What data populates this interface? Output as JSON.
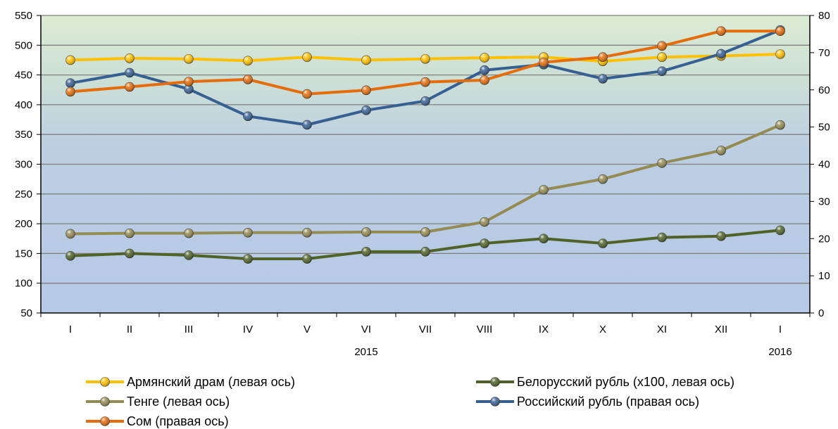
{
  "chart_data": {
    "type": "line",
    "categories": [
      "I",
      "II",
      "III",
      "IV",
      "V",
      "VI",
      "VII",
      "VIII",
      "IX",
      "X",
      "XI",
      "XII",
      "I"
    ],
    "year_labels": [
      {
        "category_index": 5,
        "label": "2015"
      },
      {
        "category_index": 12,
        "label": "2016"
      }
    ],
    "left_axis": {
      "ylim": [
        50,
        550
      ],
      "ticks": [
        "50",
        "100",
        "150",
        "200",
        "250",
        "300",
        "350",
        "400",
        "450",
        "500",
        "550"
      ]
    },
    "right_axis": {
      "ylim": [
        0,
        80
      ],
      "ticks": [
        "0",
        "10",
        "20",
        "30",
        "40",
        "50",
        "60",
        "70",
        "80"
      ]
    },
    "grid": true,
    "legend_position": "bottom",
    "series": [
      {
        "name": "Армянский драм (левая ось)",
        "axis": "left",
        "color": "#FFC000",
        "line_color": "#FFC000",
        "values": [
          475,
          478,
          477,
          474,
          480,
          475,
          477,
          479,
          480,
          473,
          480,
          482,
          485
        ]
      },
      {
        "name": "Белорусский рубль (x100, левая ось)",
        "axis": "left",
        "color": "#4F6228",
        "line_color": "#4F6228",
        "values": [
          146,
          150,
          147,
          141,
          141,
          153,
          153,
          167,
          175,
          167,
          177,
          179,
          189
        ]
      },
      {
        "name": "Тенге (левая ось)",
        "axis": "left",
        "color": "#948A54",
        "line_color": "#948A54",
        "values": [
          183,
          184,
          184,
          185,
          185,
          186,
          186,
          203,
          257,
          275,
          302,
          323,
          366
        ]
      },
      {
        "name": "Российский рубль (правая ось)",
        "axis": "right",
        "color": "#376092",
        "line_color": "#376092",
        "values": [
          61.8,
          64.6,
          60.2,
          52.9,
          50.6,
          54.5,
          57.0,
          65.3,
          66.8,
          63.0,
          65.0,
          69.7,
          76.1
        ]
      },
      {
        "name": "Сом (правая ось)",
        "axis": "right",
        "color": "#E46C0A",
        "line_color": "#E46C0A",
        "values": [
          59.5,
          60.8,
          62.2,
          62.8,
          58.9,
          59.9,
          62.1,
          62.6,
          67.4,
          68.8,
          71.8,
          75.8,
          75.8
        ]
      }
    ]
  }
}
